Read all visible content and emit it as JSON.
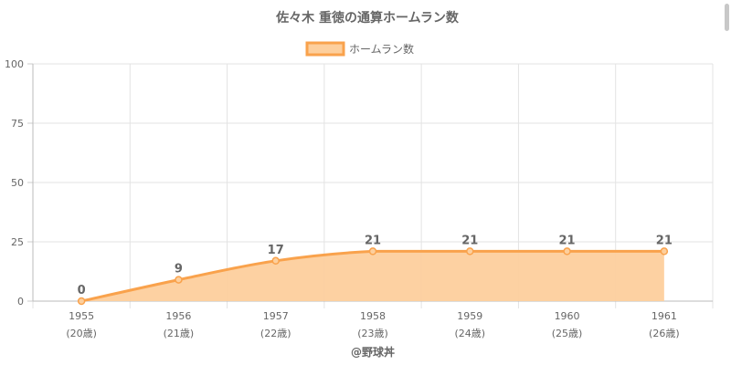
{
  "chart_data": {
    "type": "area",
    "title": "佐々木 重徳の通算ホームラン数",
    "legend": {
      "label": "ホームラン数",
      "placement": "top-center"
    },
    "categories": [
      "1955",
      "1956",
      "1957",
      "1958",
      "1959",
      "1960",
      "1961"
    ],
    "category_sublabels": [
      "(20歳)",
      "(21歳)",
      "(22歳)",
      "(23歳)",
      "(24歳)",
      "(25歳)",
      "(26歳)"
    ],
    "series": [
      {
        "name": "ホームラン数",
        "values": [
          0,
          9,
          17,
          21,
          21,
          21,
          21
        ]
      }
    ],
    "ylim": [
      0,
      100
    ],
    "yticks": [
      "0",
      "25",
      "50",
      "75",
      "100"
    ],
    "xlabel": "@野球丼",
    "ylabel": "",
    "grid": true,
    "colors": {
      "line": "#f9a24c",
      "fill": "#fdcf9d"
    }
  }
}
